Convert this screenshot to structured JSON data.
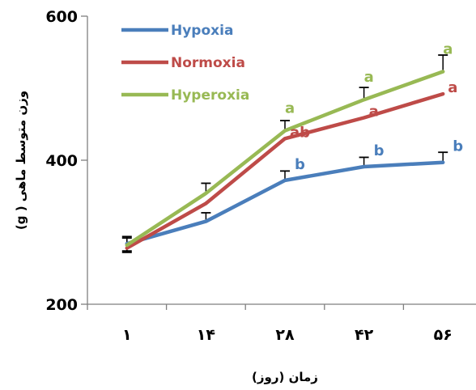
{
  "chart_data": {
    "type": "line",
    "xlabel": "زمان (روز)",
    "ylabel": "وزن متوسط ماهی ( g)",
    "categories": [
      "۱",
      "۱۴",
      "۲۸",
      "۴۲",
      "۵۶"
    ],
    "ylim": [
      200,
      600
    ],
    "yticks": [
      200,
      400,
      600
    ],
    "grid": false,
    "legend_position": "top-left",
    "series": [
      {
        "name": "Hypoxia",
        "color": "#4a7ebb",
        "values": [
          284,
          315,
          372,
          391,
          397
        ],
        "errors": [
          10,
          12,
          13,
          13,
          14
        ],
        "labels": [
          "",
          "",
          "b",
          "b",
          "b"
        ]
      },
      {
        "name": "Normoxia",
        "color": "#be4b48",
        "values": [
          278,
          340,
          430,
          459,
          492
        ],
        "errors": [
          0,
          0,
          0,
          0,
          0
        ],
        "labels": [
          "",
          "",
          "ab",
          "a",
          "a"
        ]
      },
      {
        "name": "Hyperoxia",
        "color": "#98b954",
        "values": [
          282,
          354,
          441,
          484,
          523
        ],
        "errors": [
          10,
          14,
          14,
          17,
          23
        ],
        "labels": [
          "",
          "",
          "a",
          "a",
          "a"
        ]
      }
    ]
  }
}
